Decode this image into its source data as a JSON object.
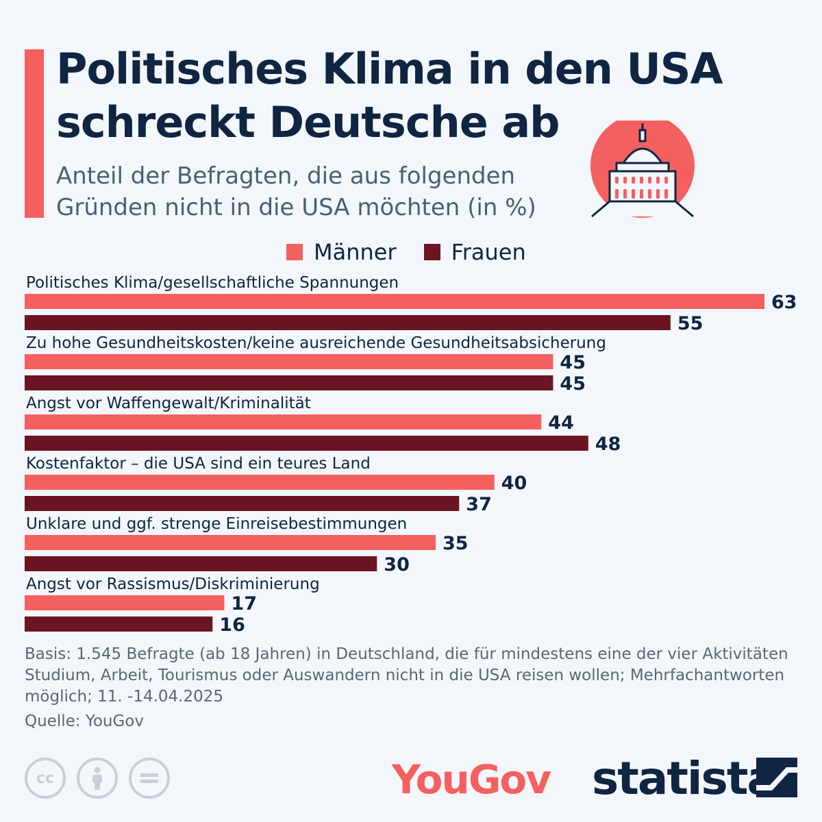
{
  "header": {
    "title": "Politisches Klima in den USA schreckt Deutsche ab",
    "subtitle": "Anteil der Befragten, die aus folgenden Gründen nicht in die USA möchten (in %)"
  },
  "icon": "capitol-building-icon",
  "colors": {
    "accent": "#f4605f",
    "maenner": "#f4605f",
    "frauen": "#6b1422",
    "text": "#0f2542"
  },
  "chart_data": {
    "type": "bar",
    "orientation": "horizontal",
    "categories": [
      "Politisches Klima/gesellschaftliche Spannungen",
      "Zu hohe Gesundheitskosten/keine ausreichende Gesundheitsabsicherung",
      "Angst vor Waffengewalt/Kriminalität",
      "Kostenfaktor – die USA sind ein teures Land",
      "Unklare und ggf. strenge Einreisebestimmungen",
      "Angst vor Rassismus/Diskriminierung"
    ],
    "series": [
      {
        "name": "Männer",
        "color": "#f4605f",
        "values": [
          63,
          45,
          44,
          40,
          35,
          17
        ]
      },
      {
        "name": "Frauen",
        "color": "#6b1422",
        "values": [
          55,
          45,
          48,
          37,
          30,
          16
        ]
      }
    ],
    "xlim": [
      0,
      63
    ],
    "grid": false,
    "legend": "top"
  },
  "footnote": "Basis: 1.545 Befragte (ab 18 Jahren) in Deutschland, die für mindestens eine der vier Aktivitäten Studium, Arbeit, Tourismus oder Auswandern nicht in die USA reisen wollen; Mehrfachantworten möglich; 11. -14.04.2025",
  "source": "Quelle: YouGov",
  "license_icons": [
    "cc-icon",
    "attribution-icon",
    "no-derivatives-icon"
  ],
  "logos": {
    "partner": "YouGov",
    "brand": "statista"
  }
}
